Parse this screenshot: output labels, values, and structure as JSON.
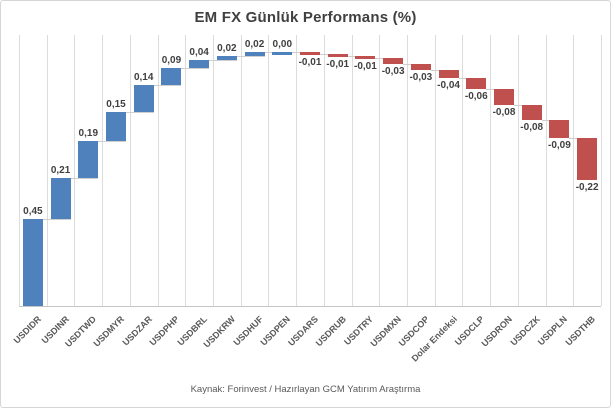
{
  "title": "EM FX Günlük Performans (%)",
  "source": "Kaynak: Forinvest / Hazırlayan GCM Yatırım Araştırma",
  "colors": {
    "positive_bar": "#4f81bd",
    "negative_bar": "#c0504d",
    "gridline": "#dcdcdc",
    "axis_line": "#c6c6c6",
    "connector": "#cfcfcf",
    "value_label": "#404040",
    "category_label": "#595959",
    "title_text": "#404040",
    "frame_border": "#d6d6d6"
  },
  "chart_data": {
    "type": "bar",
    "subtype": "waterfall",
    "title": "EM FX Günlük Performans (%)",
    "xlabel": "",
    "ylabel": "",
    "legend": "none",
    "grid": "vertical-only",
    "baseline": 0,
    "ylim": [
      0,
      1.4
    ],
    "categories": [
      "USDIDR",
      "USDINR",
      "USDTWD",
      "USDMYR",
      "USDZAR",
      "USDPHP",
      "USDBRL",
      "USDKRW",
      "USDHUF",
      "USDPEN",
      "USDARS",
      "USDRUB",
      "USDTRY",
      "USDMXN",
      "USDCOP",
      "Dolar Endeksi",
      "USDCLP",
      "USDRON",
      "USDCZK",
      "USDPLN",
      "USDTHB"
    ],
    "values": [
      0.45,
      0.21,
      0.19,
      0.15,
      0.14,
      0.09,
      0.04,
      0.02,
      0.02,
      0.0,
      -0.01,
      -0.01,
      -0.01,
      -0.03,
      -0.03,
      -0.04,
      -0.06,
      -0.08,
      -0.08,
      -0.09,
      -0.22
    ],
    "value_labels": [
      "0,45",
      "0,21",
      "0,19",
      "0,15",
      "0,14",
      "0,09",
      "0,04",
      "0,02",
      "0,02",
      "0,00",
      "-0,01",
      "-0,01",
      "-0,01",
      "-0,03",
      "-0,03",
      "-0,04",
      "-0,06",
      "-0,08",
      "-0,08",
      "-0,09",
      "-0,22"
    ]
  }
}
